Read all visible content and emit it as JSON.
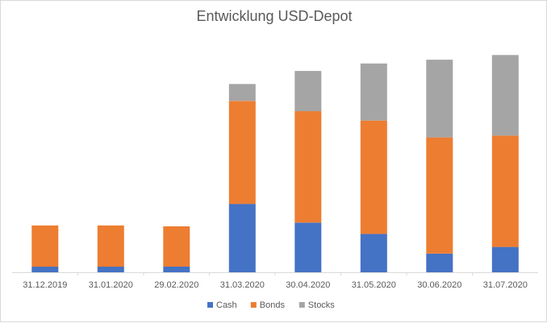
{
  "chart_data": {
    "type": "bar",
    "stacked": true,
    "title": "Entwicklung USD-Depot",
    "xlabel": "",
    "ylabel": "",
    "categories": [
      "31.12.2019",
      "31.01.2020",
      "29.02.2020",
      "31.03.2020",
      "30.04.2020",
      "31.05.2020",
      "30.06.2020",
      "31.07.2020"
    ],
    "series": [
      {
        "name": "Cash",
        "color": "#4472c4",
        "values": [
          6,
          6,
          6,
          73,
          53,
          41,
          20,
          27
        ]
      },
      {
        "name": "Bonds",
        "color": "#ed7d31",
        "values": [
          44,
          44,
          43,
          110,
          119,
          121,
          124,
          119
        ]
      },
      {
        "name": "Stocks",
        "color": "#a5a5a5",
        "values": [
          0,
          0,
          0,
          18,
          43,
          61,
          83,
          86
        ]
      }
    ],
    "ylim": [
      0,
      240
    ],
    "y_axis_visible": false,
    "grid": false,
    "legend_position": "bottom"
  }
}
